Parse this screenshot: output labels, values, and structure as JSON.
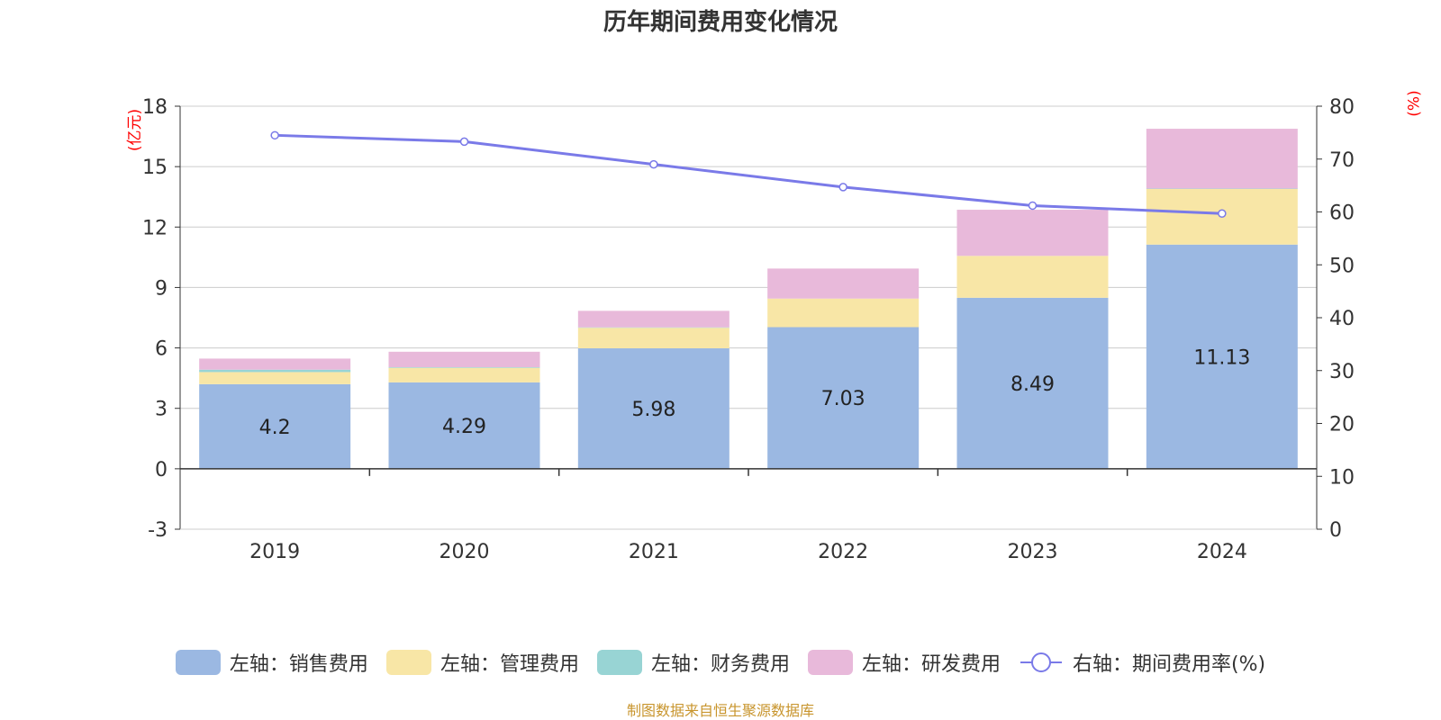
{
  "title": "历年期间费用变化情况",
  "left_unit": "(亿元)",
  "right_unit": "(%)",
  "source": "制图数据来自恒生聚源数据库",
  "colors": {
    "sales": "#9bb8e2",
    "admin": "#f8e6a6",
    "finance": "#98d4d4",
    "rd": "#e8b9da",
    "rate_line": "#7a7ae8",
    "axis_text": "#333333",
    "unit_text": "#ff0000",
    "grid": "#cccccc"
  },
  "legend": [
    {
      "label": "左轴：销售费用",
      "key": "sales"
    },
    {
      "label": "左轴：管理费用",
      "key": "admin"
    },
    {
      "label": "左轴：财务费用",
      "key": "finance"
    },
    {
      "label": "左轴：研发费用",
      "key": "rd"
    },
    {
      "label": "右轴：期间费用率(%)",
      "key": "rate_line"
    }
  ],
  "chart_data": {
    "type": "bar",
    "stacked": true,
    "categories": [
      "2019",
      "2020",
      "2021",
      "2022",
      "2023",
      "2024"
    ],
    "series": [
      {
        "name": "左轴：销售费用",
        "key": "sales",
        "axis": "left",
        "values": [
          4.2,
          4.29,
          5.98,
          7.03,
          8.49,
          11.13
        ],
        "data_labels": [
          "4.2",
          "4.29",
          "5.98",
          "7.03",
          "8.49",
          "11.13"
        ]
      },
      {
        "name": "左轴：管理费用",
        "key": "admin",
        "axis": "left",
        "values": [
          0.6,
          0.72,
          1.02,
          1.42,
          2.08,
          2.76
        ]
      },
      {
        "name": "左轴：财务费用",
        "key": "finance",
        "axis": "left",
        "values": [
          0.12,
          0.03,
          0.02,
          0.0,
          0.0,
          0.02
        ]
      },
      {
        "name": "左轴：研发费用",
        "key": "rd",
        "axis": "left",
        "values": [
          0.55,
          0.77,
          0.82,
          1.49,
          2.29,
          2.97
        ]
      },
      {
        "name": "右轴：期间费用率(%)",
        "key": "rate_line",
        "axis": "right",
        "type": "line",
        "values": [
          74.5,
          73.3,
          69.0,
          64.7,
          61.2,
          59.7
        ]
      }
    ],
    "y_left": {
      "min": -3,
      "max": 18,
      "ticks": [
        -3,
        0,
        3,
        6,
        9,
        12,
        15,
        18
      ]
    },
    "y_right": {
      "min": 0,
      "max": 80,
      "ticks": [
        0,
        10,
        20,
        30,
        40,
        50,
        60,
        70,
        80
      ]
    },
    "grid": true,
    "legend_position": "bottom"
  }
}
